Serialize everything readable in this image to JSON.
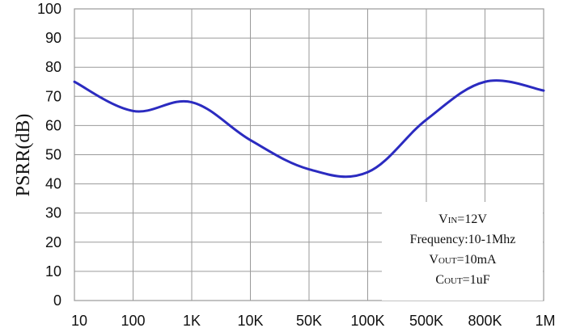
{
  "chart_data": {
    "type": "line",
    "title": "",
    "xlabel": "",
    "ylabel": "PSRR(dB)",
    "x_ticks": [
      "10",
      "100",
      "1K",
      "10K",
      "50K",
      "100K",
      "500K",
      "800K",
      "1M"
    ],
    "y_ticks": [
      0,
      10,
      20,
      30,
      40,
      50,
      60,
      70,
      80,
      90,
      100
    ],
    "ylim": [
      0,
      100
    ],
    "grid": true,
    "series": [
      {
        "color": "#2b2bc0",
        "x": [
          "10",
          "100",
          "1K",
          "10K",
          "50K",
          "100K",
          "500K",
          "800K",
          "1M"
        ],
        "values": [
          75,
          65,
          68,
          55,
          45,
          44,
          62,
          75,
          72
        ]
      }
    ],
    "annotation": {
      "lines": [
        {
          "main": "V",
          "sub": "IN",
          "rest": "=12V"
        },
        {
          "main": "Frequency:10-1Mhz",
          "sub": "",
          "rest": ""
        },
        {
          "main": "V",
          "sub": "OUT",
          "rest": "=10mA"
        },
        {
          "main": "C",
          "sub": "OUT",
          "rest": "=1uF"
        }
      ]
    }
  }
}
